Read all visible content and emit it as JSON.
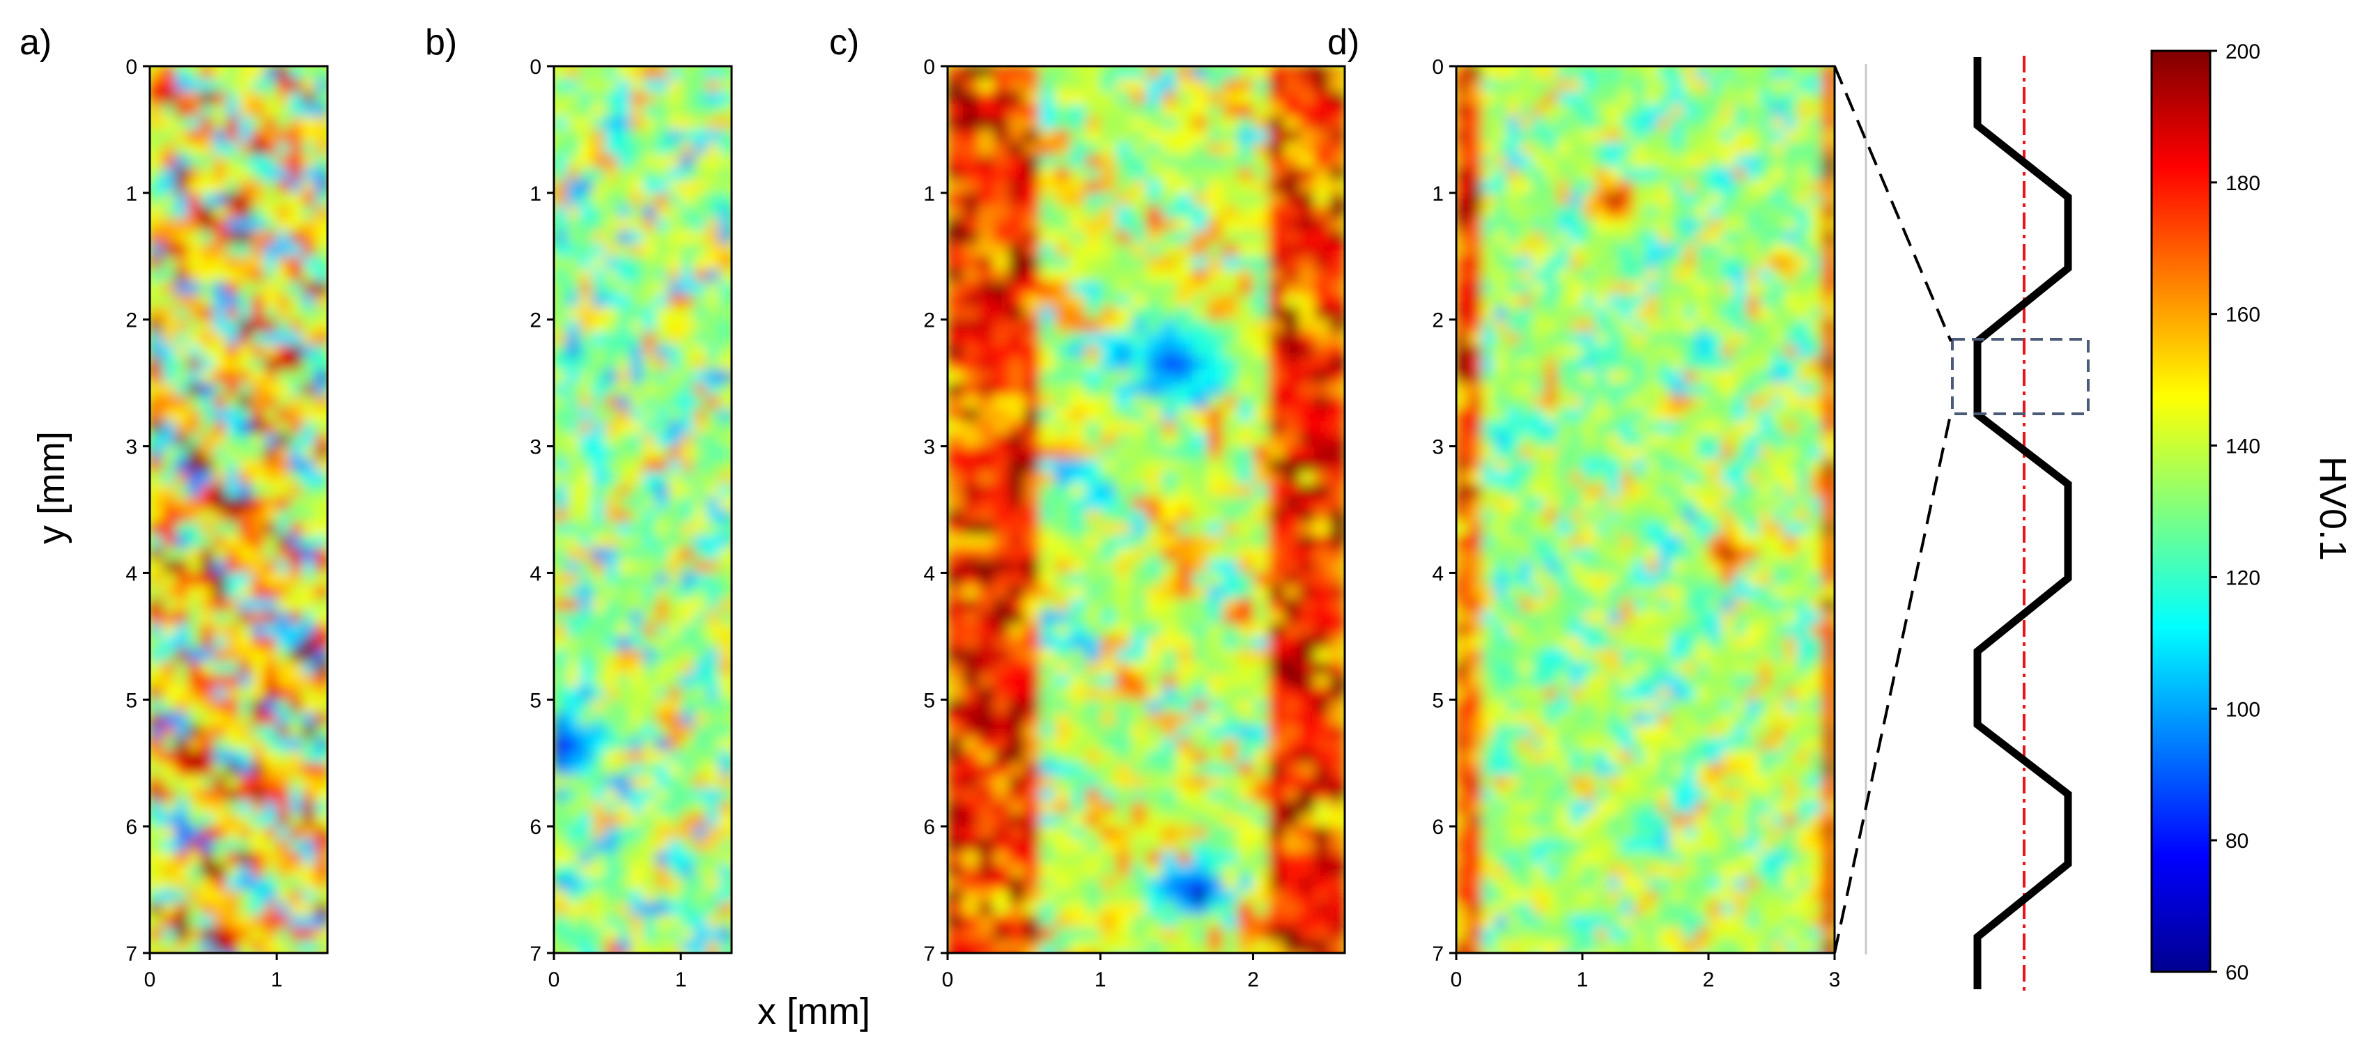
{
  "chart_data": [
    {
      "type": "heatmap",
      "panel_label": "a)",
      "xlim": [
        0,
        1.4
      ],
      "ylim": [
        7,
        0
      ],
      "xticks": [
        "0",
        "1"
      ],
      "yticks": [
        "0",
        "1",
        "2",
        "3",
        "4",
        "5",
        "6",
        "7"
      ],
      "ylabel": "y [mm]",
      "xlabel": "",
      "value_range": [
        60,
        200
      ],
      "character": "mostly 140-200 HV0.1, many dark red patches mixed with cyan/green"
    },
    {
      "type": "heatmap",
      "panel_label": "b)",
      "xlim": [
        0,
        1.4
      ],
      "ylim": [
        7,
        0
      ],
      "xticks": [
        "0",
        "1"
      ],
      "yticks": [
        "0",
        "1",
        "2",
        "3",
        "4",
        "5",
        "6",
        "7"
      ],
      "ylabel": "",
      "xlabel": "",
      "value_range": [
        60,
        200
      ],
      "character": "mostly green/cyan 110-150, scattered orange patches, blue spot near x=0, y=5.3"
    },
    {
      "type": "heatmap",
      "panel_label": "c)",
      "xlim": [
        0,
        2.6
      ],
      "ylim": [
        7,
        0
      ],
      "xticks": [
        "0",
        "1",
        "2"
      ],
      "yticks": [
        "0",
        "1",
        "2",
        "3",
        "4",
        "5",
        "6",
        "7"
      ],
      "ylabel": "",
      "xlabel": "x [mm]",
      "value_range": [
        60,
        200
      ],
      "character": "red edges, green/cyan center, blue streak near x=1.4, y=2.3, dark blue spot at x=1.6, y=6.5"
    },
    {
      "type": "heatmap",
      "panel_label": "d)",
      "xlim": [
        0,
        3
      ],
      "ylim": [
        7,
        0
      ],
      "xticks": [
        "0",
        "1",
        "2",
        "3"
      ],
      "yticks": [
        "0",
        "1",
        "2",
        "3",
        "4",
        "5",
        "6",
        "7"
      ],
      "ylabel": "",
      "xlabel": "",
      "value_range": [
        60,
        200
      ],
      "character": "mostly green/cyan, red spots at x=1.2, y=1.0 and x=2.1, y=3.8, red along left and right edges"
    }
  ],
  "colorbar": {
    "label": "HV0.1",
    "min": 60,
    "max": 200,
    "ticks": [
      "60",
      "80",
      "100",
      "120",
      "140",
      "160",
      "180",
      "200"
    ],
    "colormap": "jet"
  },
  "schematic": {
    "description": "zigzag strut with red dash-dot centre line and dashed inset box linked to panel d",
    "line_color": "#000000",
    "centerline_color": "#e8141a"
  }
}
